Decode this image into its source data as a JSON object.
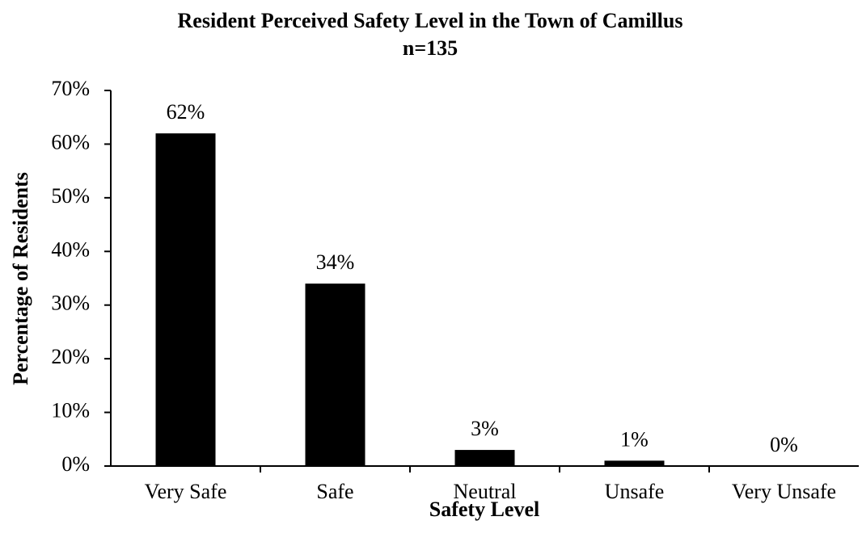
{
  "chart_data": {
    "type": "bar",
    "title": "Resident Perceived Safety Level in the Town of Camillus",
    "subtitle": "n=135",
    "x_label": "Safety Level",
    "y_label": "Percentage of Residents",
    "categories": [
      "Very Safe",
      "Safe",
      "Neutral",
      "Unsafe",
      "Very Unsafe"
    ],
    "values": [
      62,
      34,
      3,
      1,
      0
    ],
    "value_labels": [
      "62%",
      "34%",
      "3%",
      "1%",
      "0%"
    ],
    "color": "#000000",
    "ylim": [
      0,
      70
    ],
    "yticks": [
      {
        "value": 0,
        "label": "0%"
      },
      {
        "value": 10,
        "label": "10%"
      },
      {
        "value": 20,
        "label": "20%"
      },
      {
        "value": 30,
        "label": "30%"
      },
      {
        "value": 40,
        "label": "40%"
      },
      {
        "value": 50,
        "label": "50%"
      },
      {
        "value": 60,
        "label": "60%"
      },
      {
        "value": 70,
        "label": "70%"
      }
    ],
    "grid": false
  }
}
